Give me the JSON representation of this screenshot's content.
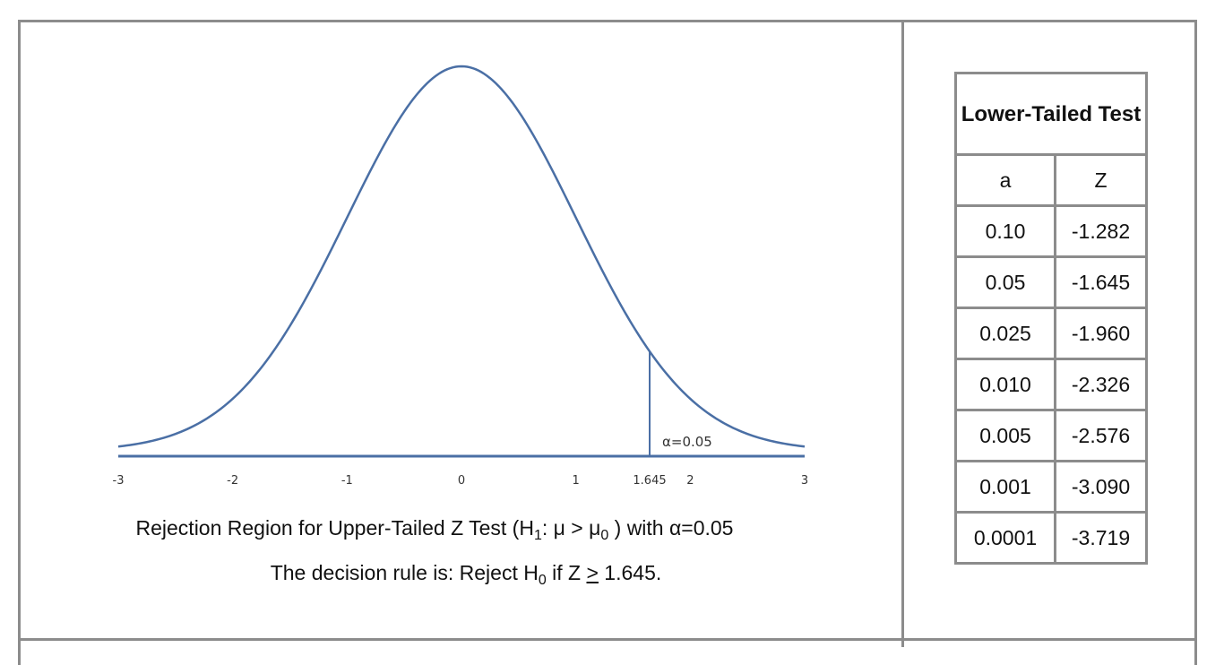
{
  "chart_data": {
    "type": "line",
    "distribution": "standard normal",
    "x_ticks": [
      "-3",
      "-2",
      "-1",
      "0",
      "1",
      "1.645",
      "2",
      "3"
    ],
    "x_tick_values": [
      -3,
      -2,
      -1,
      0,
      1,
      1.645,
      2,
      3
    ],
    "xlim": [
      -3,
      3
    ],
    "critical_value": 1.645,
    "alpha_label": "α=0.05",
    "line_color": "#4a6fa5"
  },
  "caption": {
    "line1_a": "Rejection Region for Upper-Tailed Z Test (H",
    "line1_sub1": "1",
    "line1_b": ": μ > μ",
    "line1_sub0": "0",
    "line1_c": " ) with α=0.05",
    "line2_a": "The decision rule is: Reject H",
    "line2_sub0": "0",
    "line2_b": " if Z ",
    "line2_ge": ">",
    "line2_c": " 1.645."
  },
  "table": {
    "title": "Lower-Tailed Test",
    "col_a": "a",
    "col_z": "Z",
    "rows": [
      {
        "a": "0.10",
        "z": "-1.282"
      },
      {
        "a": "0.05",
        "z": "-1.645"
      },
      {
        "a": "0.025",
        "z": "-1.960"
      },
      {
        "a": "0.010",
        "z": "-2.326"
      },
      {
        "a": "0.005",
        "z": "-2.576"
      },
      {
        "a": "0.001",
        "z": "-3.090"
      },
      {
        "a": "0.0001",
        "z": "-3.719"
      }
    ]
  }
}
